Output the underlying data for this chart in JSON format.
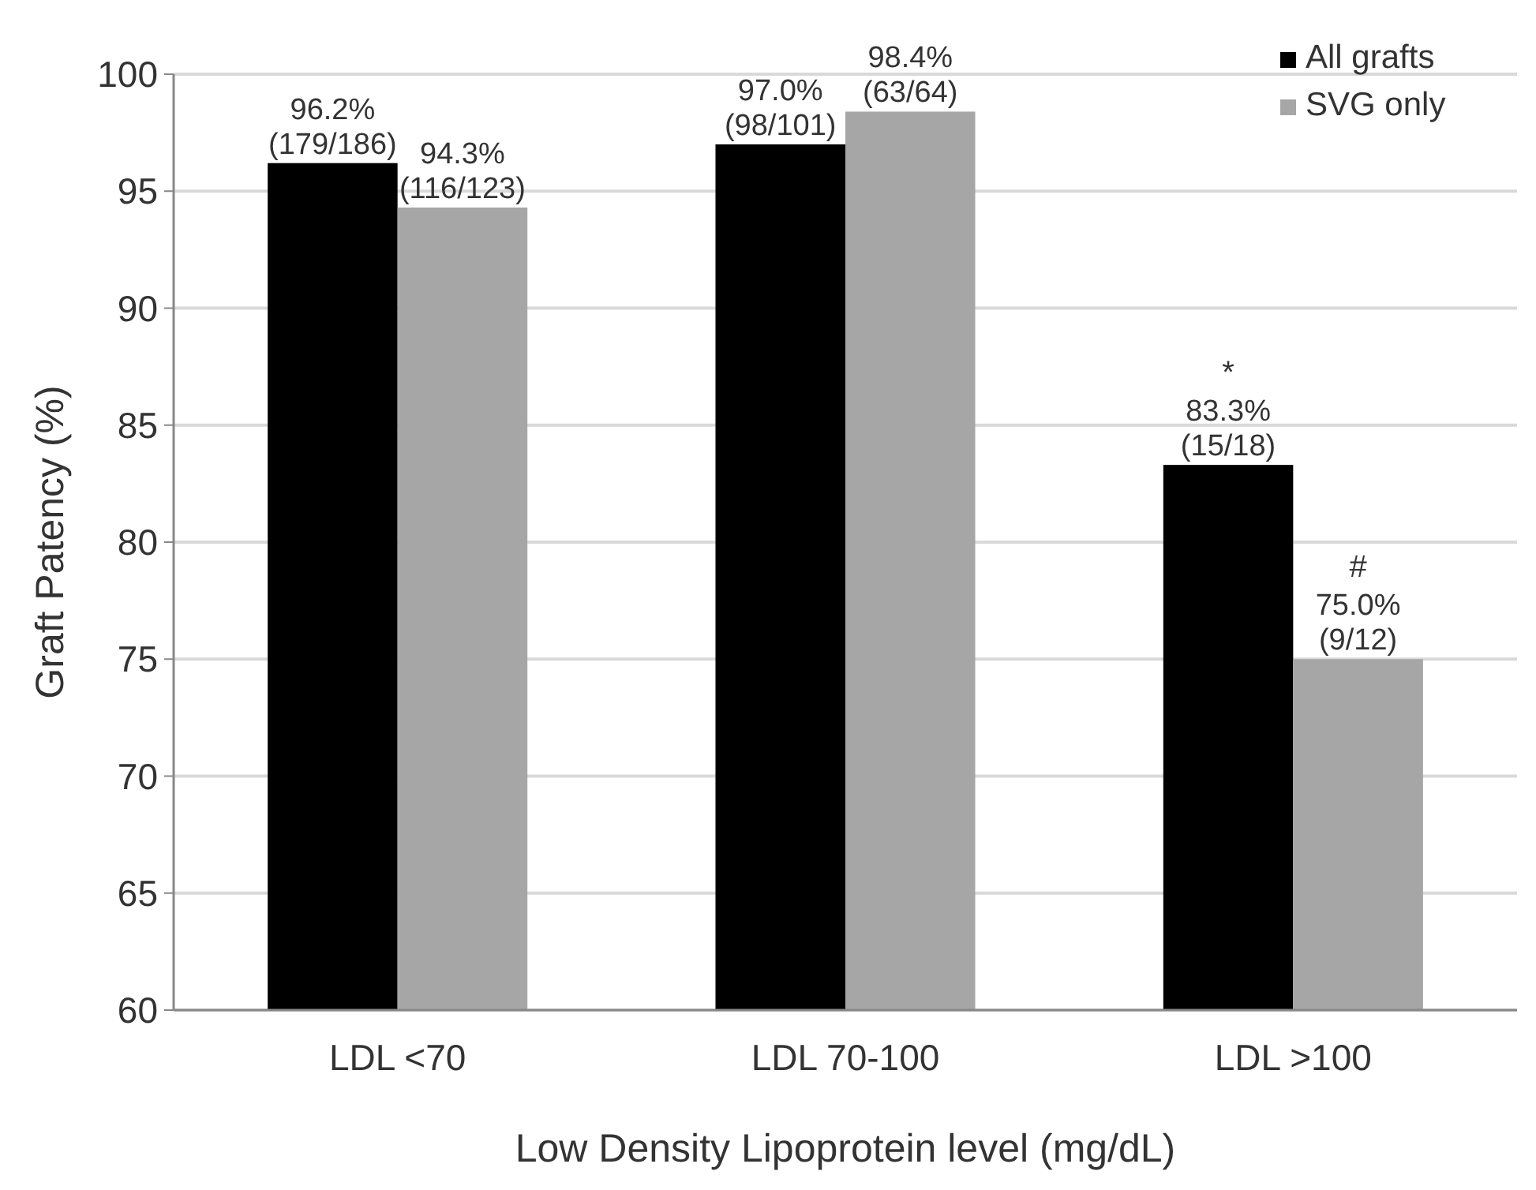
{
  "chart_data": {
    "type": "bar",
    "xlabel": "Low Density Lipoprotein level (mg/dL)",
    "ylabel": "Graft Patency (%)",
    "categories": [
      "LDL <70",
      "LDL 70-100",
      "LDL >100"
    ],
    "series": [
      {
        "name": "All grafts",
        "color": "#000000",
        "values": [
          96.2,
          97.0,
          83.3
        ],
        "value_labels": [
          "96.2%\n(179/186)",
          "97.0%\n(98/101)",
          "83.3%\n(15/18)"
        ]
      },
      {
        "name": "SVG only",
        "color": "#a6a6a6",
        "values": [
          94.3,
          98.4,
          75.0
        ],
        "value_labels": [
          "94.3%\n(116/123)",
          "98.4%\n(63/64)",
          "75.0%\n(9/12)"
        ]
      }
    ],
    "ylim": [
      60,
      100
    ],
    "yticks": [
      60,
      65,
      70,
      75,
      80,
      85,
      90,
      95,
      100
    ],
    "grid": "y",
    "legend": "top right",
    "annotations": [
      {
        "text": "*",
        "x": "LDL >100",
        "y": 83.3
      },
      {
        "text": "#",
        "x": "LDL >100",
        "y": 75.0
      }
    ]
  }
}
